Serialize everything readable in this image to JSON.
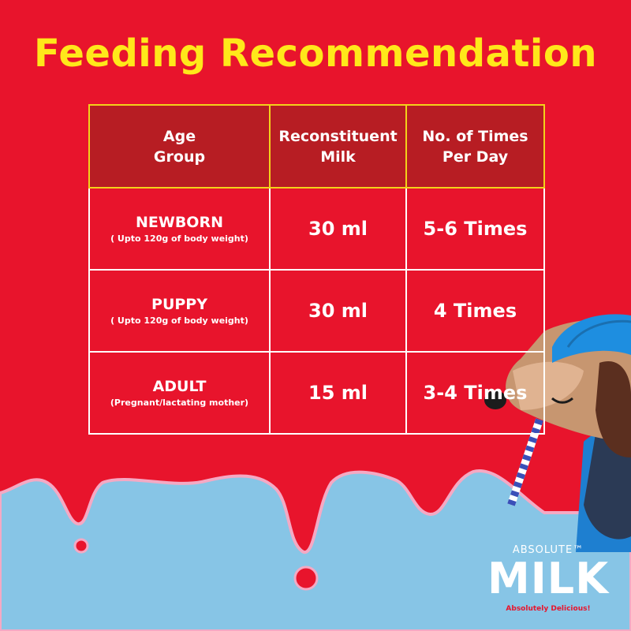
{
  "title": "Feeding Recommendation",
  "table": {
    "headers": [
      {
        "line1": "Age",
        "line2": "Group"
      },
      {
        "line1": "Reconstituent",
        "line2": "Milk"
      },
      {
        "line1": "No. of Times",
        "line2": "Per Day"
      }
    ],
    "rows": [
      {
        "stage": "NEWBORN",
        "note": "( Upto 120g of body weight)",
        "milk": "30 ml",
        "times": "5-6 Times"
      },
      {
        "stage": "PUPPY",
        "note": "( Upto 120g of body weight)",
        "milk": "30 ml",
        "times": "4 Times"
      },
      {
        "stage": "ADULT",
        "note": "(Pregnant/lactating mother)",
        "milk": "15 ml",
        "times": "3-4 Times"
      }
    ]
  },
  "brand": {
    "top": "ABSOLUTE™",
    "name": "MILK",
    "tagline": "Absolutely Delicious!"
  },
  "colors": {
    "background": "#e8142c",
    "title": "#ffe81a",
    "header_fill": "#b71d23",
    "milk_blue": "#87c5e6"
  },
  "illustration": [
    "dog-icon",
    "straw-icon",
    "milk-drip"
  ]
}
